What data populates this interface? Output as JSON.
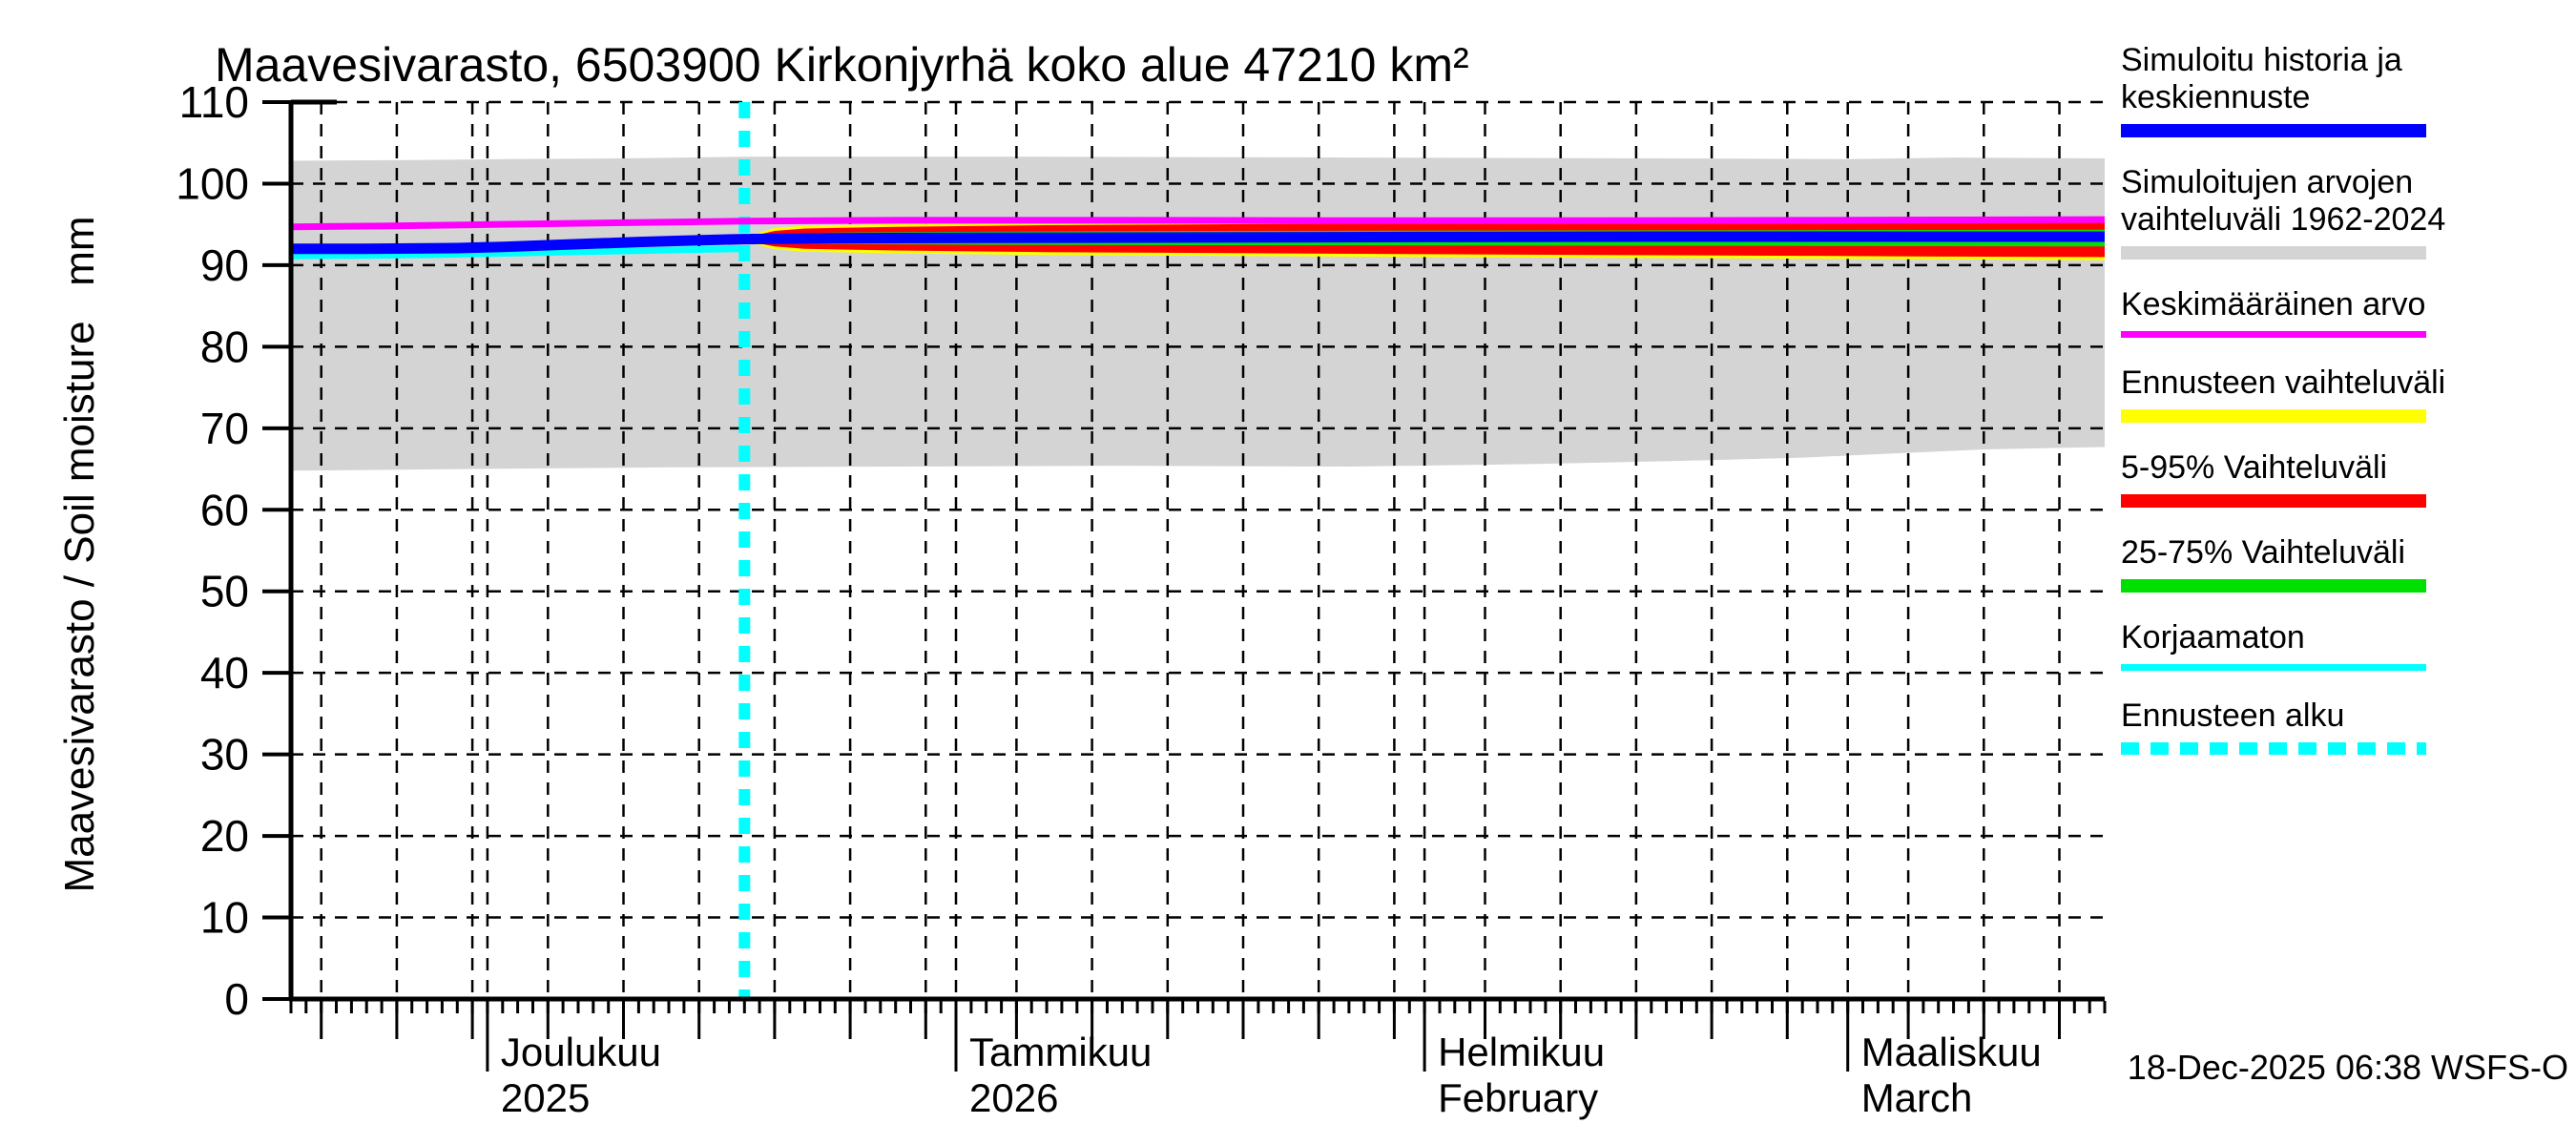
{
  "title": "Maavesivarasto, 6503900 Kirkonjyrhä koko alue 47210 km²",
  "footer": {
    "timestamp": "18-Dec-2025 06:38 WSFS-O"
  },
  "axes": {
    "y_label": "Maavesivarasto / Soil moisture   mm",
    "y_ticks": [
      0,
      10,
      20,
      30,
      40,
      50,
      60,
      70,
      80,
      90,
      100,
      110
    ],
    "months": [
      {
        "label1": "Joulukuu",
        "label2": "2025",
        "day": 13
      },
      {
        "label1": "Tammikuu",
        "label2": "2026",
        "day": 44
      },
      {
        "label1": "Helmikuu",
        "label2": "February",
        "day": 75
      },
      {
        "label1": "Maaliskuu",
        "label2": "March",
        "day": 103
      }
    ]
  },
  "chart_data": {
    "type": "line",
    "title": "Maavesivarasto, 6503900 Kirkonjyrhä koko alue 47210 km²",
    "ylabel": "Maavesivarasto / Soil moisture mm",
    "ylim": [
      0,
      110
    ],
    "x_unit": "days (x axis spans 18-Nov-2025 to 18-Mar-2026)",
    "x_domain_days": [
      0,
      120
    ],
    "forecast_start_day": 30,
    "forecast_start_date": "18-Dec-2025",
    "grid_on": true,
    "legend_position": "right",
    "grid_days": [
      2,
      7,
      12,
      13,
      17,
      22,
      27,
      32,
      37,
      42,
      44,
      48,
      53,
      58,
      63,
      68,
      73,
      75,
      79,
      84,
      89,
      94,
      99,
      103,
      107,
      112,
      117
    ],
    "medium_tick_days": [
      2,
      7,
      12,
      17,
      22,
      27,
      32,
      37,
      42,
      48,
      53,
      58,
      63,
      68,
      73,
      79,
      84,
      89,
      94,
      99,
      107,
      112,
      117
    ],
    "month_tick_days": [
      13,
      44,
      75,
      103
    ],
    "bands": [
      {
        "name": "simulated-range-1962-2024",
        "label": "Simuloitujen arvojen vaihteluväli 1962-2024",
        "color": "#d4d4d4",
        "upper": [
          [
            0,
            102.8
          ],
          [
            8,
            102.9
          ],
          [
            14,
            103.0
          ],
          [
            22,
            103.1
          ],
          [
            30,
            103.3
          ],
          [
            50,
            103.3
          ],
          [
            70,
            103.2
          ],
          [
            90,
            103.1
          ],
          [
            103,
            103.0
          ],
          [
            110,
            103.2
          ],
          [
            120,
            103.1
          ]
        ],
        "lower": [
          [
            0,
            64.8
          ],
          [
            12,
            65.0
          ],
          [
            25,
            65.2
          ],
          [
            40,
            65.3
          ],
          [
            55,
            65.4
          ],
          [
            70,
            65.3
          ],
          [
            82,
            65.6
          ],
          [
            92,
            66.0
          ],
          [
            100,
            66.4
          ],
          [
            106,
            66.9
          ],
          [
            112,
            67.4
          ],
          [
            120,
            67.7
          ]
        ]
      },
      {
        "name": "forecast-range",
        "label": "Ennusteen vaihteluväli",
        "color": "#ffff00",
        "upper": [
          [
            30,
            93.45
          ],
          [
            32,
            94.55
          ],
          [
            34,
            94.85
          ],
          [
            40,
            95.05
          ],
          [
            50,
            95.25
          ],
          [
            65,
            95.4
          ],
          [
            80,
            95.55
          ],
          [
            100,
            95.65
          ],
          [
            110,
            95.7
          ],
          [
            120,
            95.7
          ]
        ],
        "lower": [
          [
            30,
            92.9
          ],
          [
            32,
            91.95
          ],
          [
            34,
            91.65
          ],
          [
            40,
            91.45
          ],
          [
            50,
            91.25
          ],
          [
            65,
            91.1
          ],
          [
            80,
            90.95
          ],
          [
            100,
            90.8
          ],
          [
            110,
            90.7
          ],
          [
            120,
            90.6
          ]
        ]
      },
      {
        "name": "range-5-95",
        "label": "5-95% Vaihteluväli",
        "color": "#ff0000",
        "upper": [
          [
            30,
            93.35
          ],
          [
            32,
            94.2
          ],
          [
            34,
            94.5
          ],
          [
            40,
            94.7
          ],
          [
            50,
            94.9
          ],
          [
            65,
            95.05
          ],
          [
            80,
            95.2
          ],
          [
            100,
            95.3
          ],
          [
            110,
            95.3
          ],
          [
            120,
            95.3
          ]
        ],
        "lower": [
          [
            30,
            93.0
          ],
          [
            32,
            92.3
          ],
          [
            34,
            92.0
          ],
          [
            40,
            91.8
          ],
          [
            50,
            91.6
          ],
          [
            65,
            91.45
          ],
          [
            80,
            91.3
          ],
          [
            100,
            91.15
          ],
          [
            110,
            91.05
          ],
          [
            120,
            91.0
          ]
        ]
      },
      {
        "name": "range-25-75",
        "label": "25-75% Vaihteluväli",
        "color": "#00e000",
        "upper": [
          [
            30,
            93.3
          ],
          [
            32,
            93.85
          ],
          [
            36,
            94.0
          ],
          [
            45,
            94.1
          ],
          [
            60,
            94.2
          ],
          [
            80,
            94.25
          ],
          [
            100,
            94.3
          ],
          [
            120,
            94.35
          ]
        ],
        "lower": [
          [
            30,
            93.05
          ],
          [
            32,
            92.75
          ],
          [
            36,
            92.6
          ],
          [
            45,
            92.5
          ],
          [
            60,
            92.45
          ],
          [
            80,
            92.4
          ],
          [
            100,
            92.35
          ],
          [
            120,
            92.3
          ]
        ]
      }
    ],
    "series": [
      {
        "name": "uncorrected",
        "label": "Korjaamaton",
        "color": "#00ffff",
        "width": 7,
        "points": [
          [
            0,
            91.15
          ],
          [
            5,
            91.2
          ],
          [
            10,
            91.3
          ],
          [
            14,
            91.45
          ],
          [
            18,
            91.6
          ],
          [
            22,
            91.75
          ],
          [
            26,
            91.9
          ],
          [
            30,
            92.0
          ]
        ]
      },
      {
        "name": "simulated-history-and-mean-forecast",
        "label": "Simuloitu historia ja keskiennuste",
        "color": "#0000ff",
        "width": 11,
        "points": [
          [
            0,
            92.0
          ],
          [
            4,
            92.0
          ],
          [
            8,
            92.05
          ],
          [
            11,
            92.1
          ],
          [
            14,
            92.25
          ],
          [
            17,
            92.45
          ],
          [
            20,
            92.65
          ],
          [
            23,
            92.85
          ],
          [
            26,
            93.0
          ],
          [
            28,
            93.1
          ],
          [
            30,
            93.2
          ],
          [
            35,
            93.3
          ],
          [
            45,
            93.35
          ],
          [
            60,
            93.4
          ],
          [
            75,
            93.45
          ],
          [
            90,
            93.5
          ],
          [
            105,
            93.5
          ],
          [
            120,
            93.5
          ]
        ]
      },
      {
        "name": "mean-value",
        "label": "Keskimääräinen arvo",
        "color": "#ff00ff",
        "width": 7,
        "points": [
          [
            0,
            94.7
          ],
          [
            6,
            94.8
          ],
          [
            12,
            94.95
          ],
          [
            18,
            95.1
          ],
          [
            24,
            95.25
          ],
          [
            30,
            95.4
          ],
          [
            40,
            95.5
          ],
          [
            55,
            95.5
          ],
          [
            70,
            95.45
          ],
          [
            85,
            95.45
          ],
          [
            100,
            95.5
          ],
          [
            110,
            95.55
          ],
          [
            120,
            95.6
          ]
        ]
      }
    ],
    "forecast_line": {
      "label": "Ennusteen alku",
      "color": "#00ffff",
      "day": 30
    }
  },
  "legend": {
    "items": [
      {
        "lines": [
          "Simuloitu historia ja",
          "keskiennuste"
        ],
        "color": "#0000ff",
        "swatch": "thick"
      },
      {
        "lines": [
          "Simuloitujen arvojen",
          "vaihteluväli 1962-2024"
        ],
        "color": "#d4d4d4",
        "swatch": "thick"
      },
      {
        "lines": [
          "Keskimääräinen arvo"
        ],
        "color": "#ff00ff",
        "swatch": "thin"
      },
      {
        "lines": [
          "Ennusteen vaihteluväli"
        ],
        "color": "#ffff00",
        "swatch": "thick"
      },
      {
        "lines": [
          "5-95% Vaihteluväli"
        ],
        "color": "#ff0000",
        "swatch": "thick"
      },
      {
        "lines": [
          "25-75% Vaihteluväli"
        ],
        "color": "#00e000",
        "swatch": "thick"
      },
      {
        "lines": [
          "Korjaamaton"
        ],
        "color": "#00ffff",
        "swatch": "thin"
      },
      {
        "lines": [
          "Ennusteen alku"
        ],
        "color": "#00ffff",
        "swatch": "dashed"
      }
    ]
  }
}
